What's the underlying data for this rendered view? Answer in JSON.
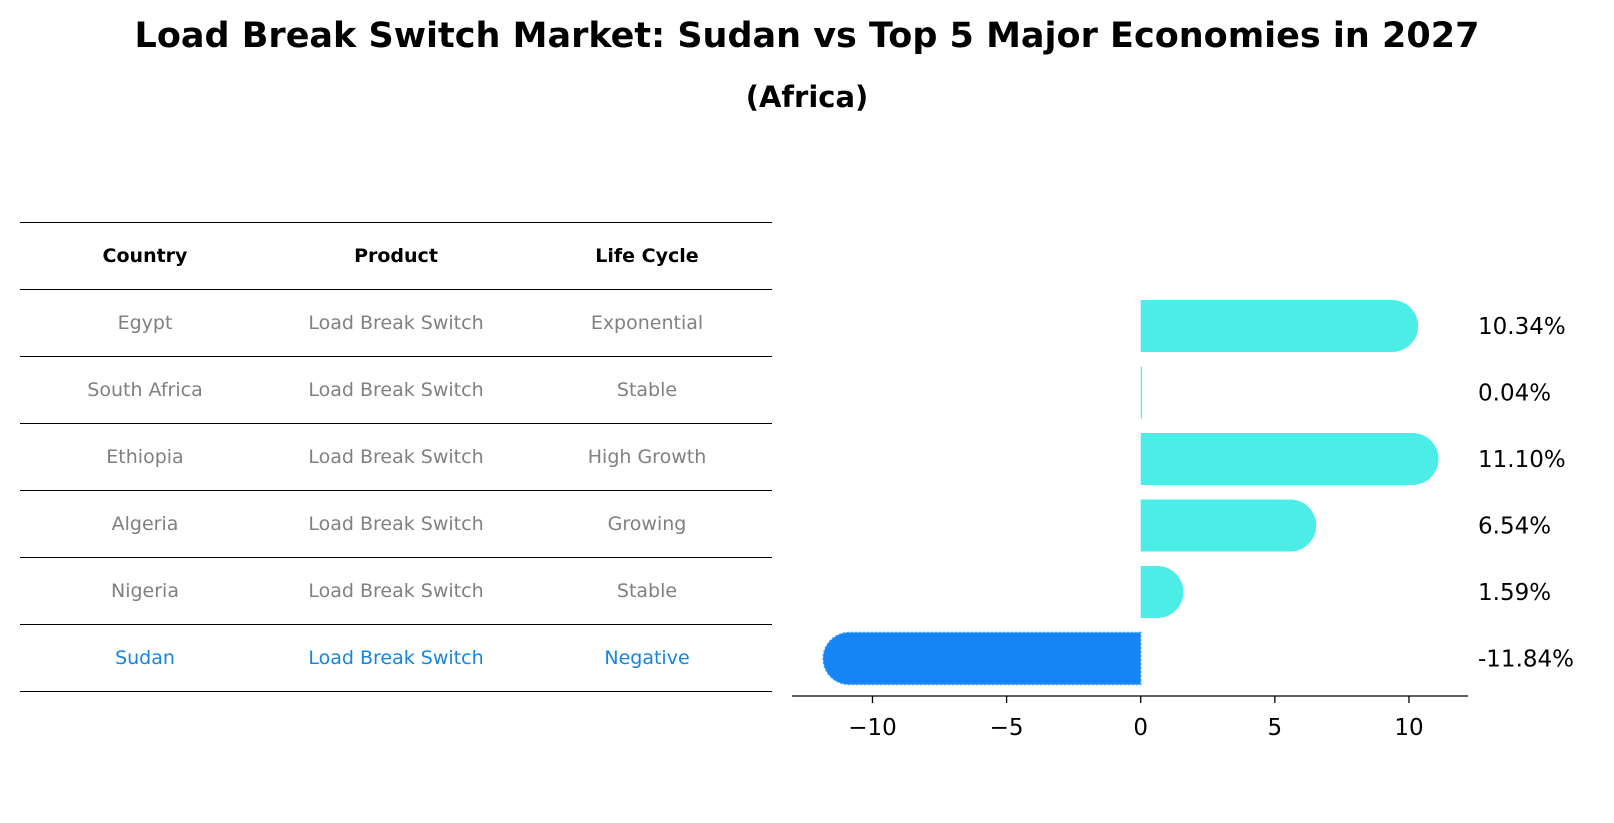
{
  "chart_data": {
    "type": "bar",
    "orientation": "horizontal",
    "title": "Load Break Switch Market: Sudan vs Top 5 Major Economies in 2027",
    "subtitle": "(Africa)",
    "categories": [
      "Egypt",
      "South Africa",
      "Ethiopia",
      "Algeria",
      "Nigeria",
      "Sudan"
    ],
    "values": [
      10.34,
      0.04,
      11.1,
      6.54,
      1.59,
      -11.84
    ],
    "value_labels": [
      "10.34%",
      "0.04%",
      "11.10%",
      "6.54%",
      "1.59%",
      "-11.84%"
    ],
    "xlim": [
      -13,
      12.2
    ],
    "xticks": [
      -10,
      -5,
      0,
      5,
      10
    ],
    "xtick_labels": [
      "−10",
      "−5",
      "0",
      "5",
      "10"
    ],
    "colors": {
      "positive": "#4bede6",
      "negative": "#1585f5"
    },
    "grid": false
  },
  "table": {
    "headers": [
      "Country",
      "Product",
      "Life Cycle"
    ],
    "rows": [
      [
        "Egypt",
        "Load Break Switch",
        "Exponential"
      ],
      [
        "South Africa",
        "Load Break Switch",
        "Stable"
      ],
      [
        "Ethiopia",
        "Load Break Switch",
        "High Growth"
      ],
      [
        "Algeria",
        "Load Break Switch",
        "Growing"
      ],
      [
        "Nigeria",
        "Load Break Switch",
        "Stable"
      ],
      [
        "Sudan",
        "Load Break Switch",
        "Negative"
      ]
    ],
    "highlight_row": 5,
    "colors": {
      "text": "#808080",
      "highlight": "#1585e0"
    }
  }
}
